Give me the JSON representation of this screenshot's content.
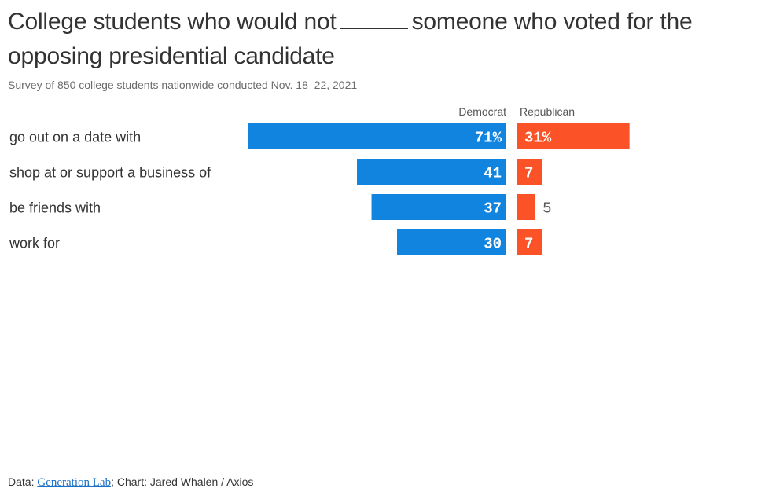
{
  "header": {
    "title_part1": "College students who would not",
    "title_part2": "someone who voted for the opposing presidential candidate",
    "subtitle": "Survey of 850 college students nationwide conducted Nov. 18–22, 2021"
  },
  "legend": {
    "democrat": "Democrat",
    "republican": "Republican"
  },
  "footer": {
    "data_prefix": "Data: ",
    "source_link": "Generation Lab",
    "credit": "; Chart: Jared Whalen / Axios"
  },
  "colors": {
    "democrat": "#1184e0",
    "republican": "#fc5228",
    "text": "#333333"
  },
  "chart_data": {
    "type": "bar",
    "orientation": "horizontal-diverging",
    "title": "College students who would not ____ someone who voted for the opposing presidential candidate",
    "subtitle": "Survey of 850 college students nationwide conducted Nov. 18–22, 2021",
    "unit": "%",
    "categories": [
      "go out on a date with",
      "shop at or support a business of",
      "be friends with",
      "work for"
    ],
    "series": [
      {
        "name": "Democrat",
        "values": [
          71,
          41,
          37,
          30
        ],
        "labels": [
          "71%",
          "41",
          "37",
          "30"
        ]
      },
      {
        "name": "Republican",
        "values": [
          31,
          7,
          5,
          7
        ],
        "labels": [
          "31%",
          "7",
          "5",
          "7"
        ]
      }
    ]
  }
}
